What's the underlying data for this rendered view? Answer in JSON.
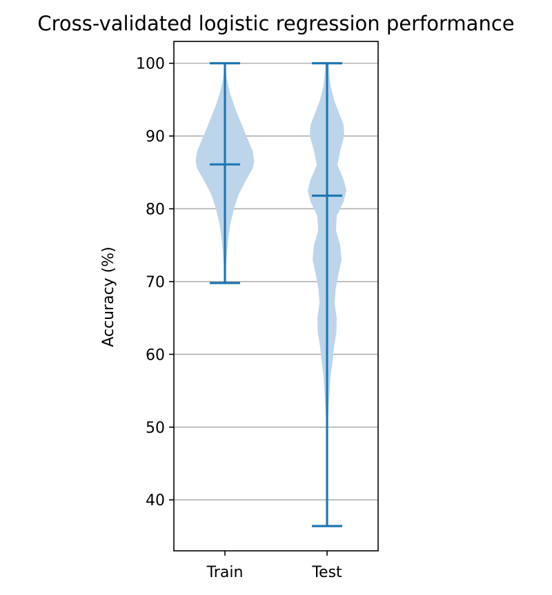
{
  "chart_data": {
    "type": "violin",
    "title": "Cross-validated logistic regression performance",
    "xlabel": "",
    "ylabel": "Accuracy (%)",
    "categories": [
      "Train",
      "Test"
    ],
    "ylim": [
      33,
      103
    ],
    "yticks": [
      40,
      50,
      60,
      70,
      80,
      90,
      100
    ],
    "grid": "y",
    "colors": {
      "body": "#bcd5ea",
      "lines": "#1f77b4"
    },
    "series": [
      {
        "category": "Train",
        "min": 69.8,
        "max": 100,
        "mean": 86.1,
        "density": [
          [
            69.8,
            0.01
          ],
          [
            72,
            0.03
          ],
          [
            74,
            0.06
          ],
          [
            76,
            0.1
          ],
          [
            78,
            0.16
          ],
          [
            80,
            0.26
          ],
          [
            82,
            0.4
          ],
          [
            84,
            0.62
          ],
          [
            85.5,
            0.8
          ],
          [
            86.5,
            0.85
          ],
          [
            88,
            0.8
          ],
          [
            90,
            0.62
          ],
          [
            92,
            0.45
          ],
          [
            94,
            0.28
          ],
          [
            96,
            0.14
          ],
          [
            98,
            0.05
          ],
          [
            100,
            0.01
          ]
        ]
      },
      {
        "category": "Test",
        "min": 36.4,
        "max": 100,
        "mean": 81.8,
        "density": [
          [
            36.4,
            0.005
          ],
          [
            40,
            0.01
          ],
          [
            45,
            0.015
          ],
          [
            50,
            0.02
          ],
          [
            53,
            0.05
          ],
          [
            55,
            0.08
          ],
          [
            57,
            0.1
          ],
          [
            59,
            0.16
          ],
          [
            61,
            0.2
          ],
          [
            63,
            0.27
          ],
          [
            65,
            0.28
          ],
          [
            67,
            0.22
          ],
          [
            69,
            0.25
          ],
          [
            71,
            0.33
          ],
          [
            73,
            0.42
          ],
          [
            75,
            0.38
          ],
          [
            77,
            0.26
          ],
          [
            79,
            0.28
          ],
          [
            81,
            0.48
          ],
          [
            82.5,
            0.56
          ],
          [
            84,
            0.48
          ],
          [
            86,
            0.3
          ],
          [
            88,
            0.38
          ],
          [
            90,
            0.5
          ],
          [
            91.5,
            0.48
          ],
          [
            93,
            0.36
          ],
          [
            95,
            0.2
          ],
          [
            97,
            0.1
          ],
          [
            99,
            0.06
          ],
          [
            100,
            0.05
          ]
        ]
      }
    ]
  }
}
